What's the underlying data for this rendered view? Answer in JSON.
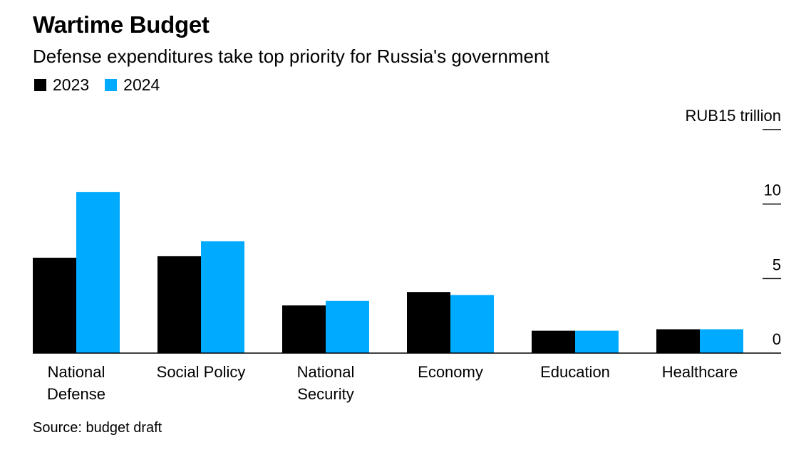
{
  "chart_data": {
    "type": "bar",
    "title": "Wartime Budget",
    "subtitle": "Defense expenditures take top priority for Russia's government",
    "unit_label": "RUB15 trillion",
    "categories": [
      [
        "National",
        "Defense"
      ],
      [
        "Social Policy"
      ],
      [
        "National",
        "Security"
      ],
      [
        "Economy"
      ],
      [
        "Education"
      ],
      [
        "Healthcare"
      ]
    ],
    "series": [
      {
        "name": "2023",
        "color": "#000000",
        "values": [
          6.4,
          6.5,
          3.2,
          4.1,
          1.5,
          1.6
        ]
      },
      {
        "name": "2024",
        "color": "#00aaff",
        "values": [
          10.8,
          7.5,
          3.5,
          3.9,
          1.5,
          1.6
        ]
      }
    ],
    "yticks": [
      {
        "value": 15,
        "label": "RUB15 trillion"
      },
      {
        "value": 10,
        "label": "10"
      },
      {
        "value": 5,
        "label": "5"
      },
      {
        "value": 0,
        "label": "0"
      }
    ],
    "ylim": [
      0,
      15
    ],
    "source": "Source: budget draft"
  }
}
